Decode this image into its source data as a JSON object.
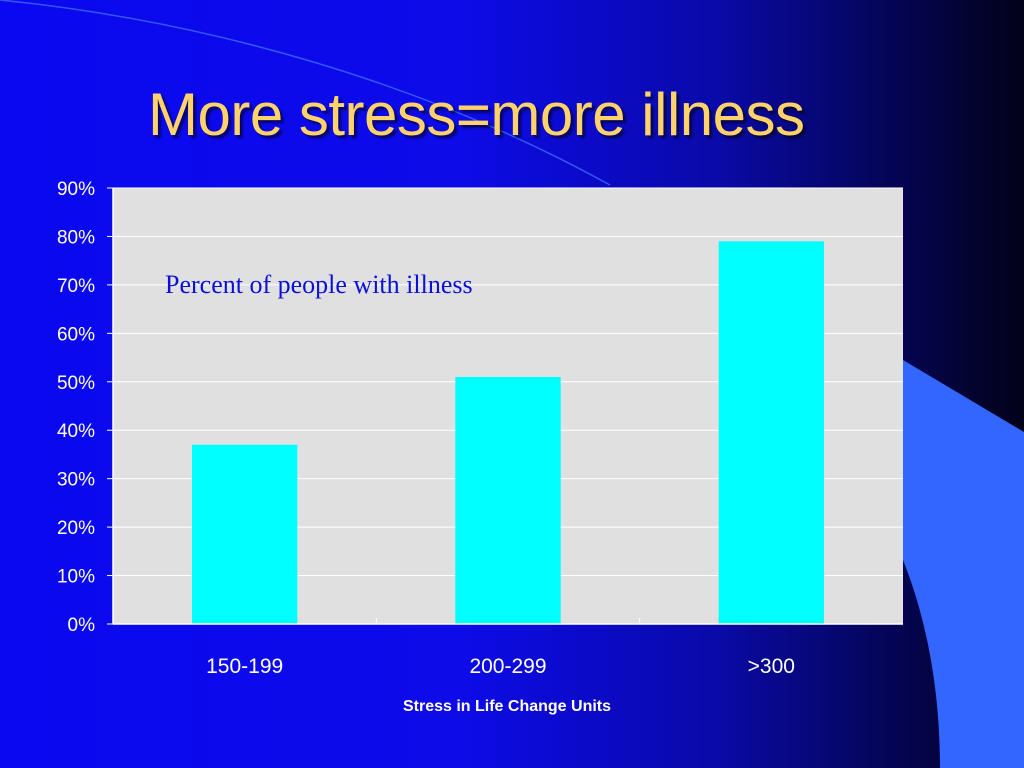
{
  "slide": {
    "title": "More stress=more illness",
    "colors": {
      "background": "#0a08f0",
      "title": "#ffd36a",
      "accent_shape": "#3366ff",
      "plot_area": "#e0e0e0",
      "bar": "#00ffff",
      "annotation": "#0a10d8"
    }
  },
  "chart_data": {
    "type": "bar",
    "categories": [
      "150-199",
      "200-299",
      ">300"
    ],
    "values": [
      37,
      51,
      79
    ],
    "xlabel": "Stress in Life Change Units",
    "ylabel": "",
    "ylim": [
      0,
      90
    ],
    "y_ticks": [
      "0%",
      "10%",
      "20%",
      "30%",
      "40%",
      "50%",
      "60%",
      "70%",
      "80%",
      "90%"
    ],
    "y_unit": "%",
    "grid": true,
    "legend": "none",
    "annotation": "Percent of people with illness"
  }
}
